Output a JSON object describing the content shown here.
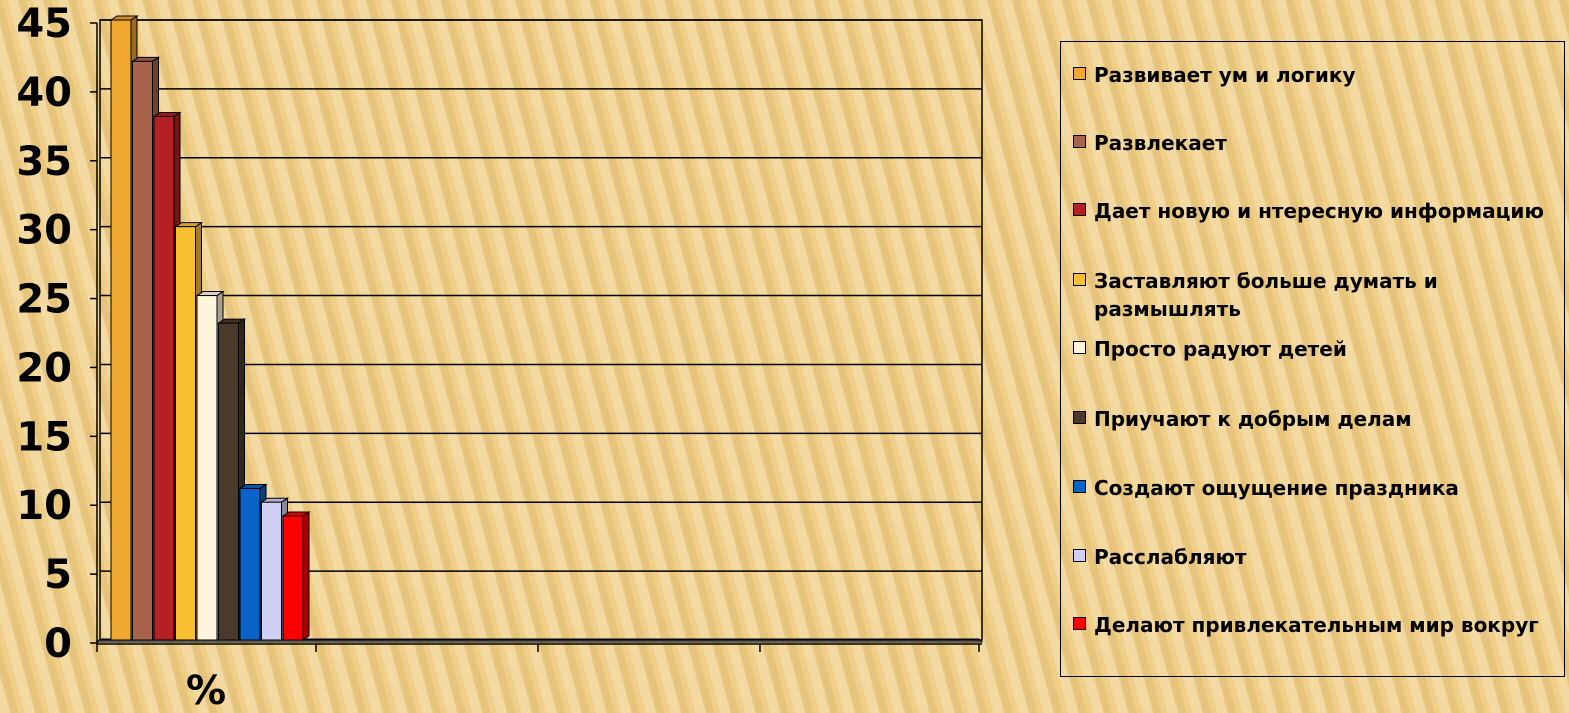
{
  "chart_data": {
    "type": "bar",
    "title": "",
    "xlabel": "%",
    "ylabel": "",
    "ylim": [
      0,
      45
    ],
    "yticks": [
      "0",
      "5",
      "10",
      "15",
      "20",
      "25",
      "30",
      "35",
      "40",
      "45"
    ],
    "grid": true,
    "legend_position": "right",
    "series": [
      {
        "name": "Развивает ум и логику",
        "value": 45,
        "color": "#f0a830"
      },
      {
        "name": "Развлекает",
        "value": 42,
        "color": "#a8644a"
      },
      {
        "name": "Дает новую и нтересную информацию",
        "value": 38,
        "color": "#b42024"
      },
      {
        "name": "Заставляют больше думать и размышлять",
        "value": 30,
        "color": "#f8c030"
      },
      {
        "name": "Просто радуют детей",
        "value": 25,
        "color": "#fff4dc"
      },
      {
        "name": "Приучают к добрым делам",
        "value": 23,
        "color": "#4a3a2c"
      },
      {
        "name": "Создают ощущение праздника",
        "value": 11,
        "color": "#0a64c8"
      },
      {
        "name": "Расслабляют",
        "value": 10,
        "color": "#d0d0f4"
      },
      {
        "name": "Делают привлекательным мир вокруг",
        "value": 9,
        "color": "#ff0000"
      }
    ]
  }
}
